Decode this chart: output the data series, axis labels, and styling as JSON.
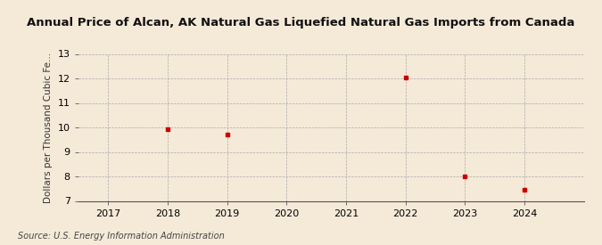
{
  "title": "Annual Price of Alcan, AK Natural Gas Liquefied Natural Gas Imports from Canada",
  "ylabel": "Dollars per Thousand Cubic Fe...",
  "source": "Source: U.S. Energy Information Administration",
  "background_color": "#f5ead8",
  "plot_bg_color": "#f5ead8",
  "x_data": [
    2018,
    2019,
    2022,
    2023,
    2024
  ],
  "y_data": [
    9.93,
    9.7,
    12.03,
    7.99,
    7.47
  ],
  "marker_color": "#cc0000",
  "xlim": [
    2016.5,
    2025.0
  ],
  "ylim": [
    7,
    13
  ],
  "yticks": [
    7,
    8,
    9,
    10,
    11,
    12,
    13
  ],
  "xticks": [
    2017,
    2018,
    2019,
    2020,
    2021,
    2022,
    2023,
    2024
  ],
  "title_fontsize": 9.5,
  "ylabel_fontsize": 7.5,
  "tick_fontsize": 8,
  "source_fontsize": 7
}
